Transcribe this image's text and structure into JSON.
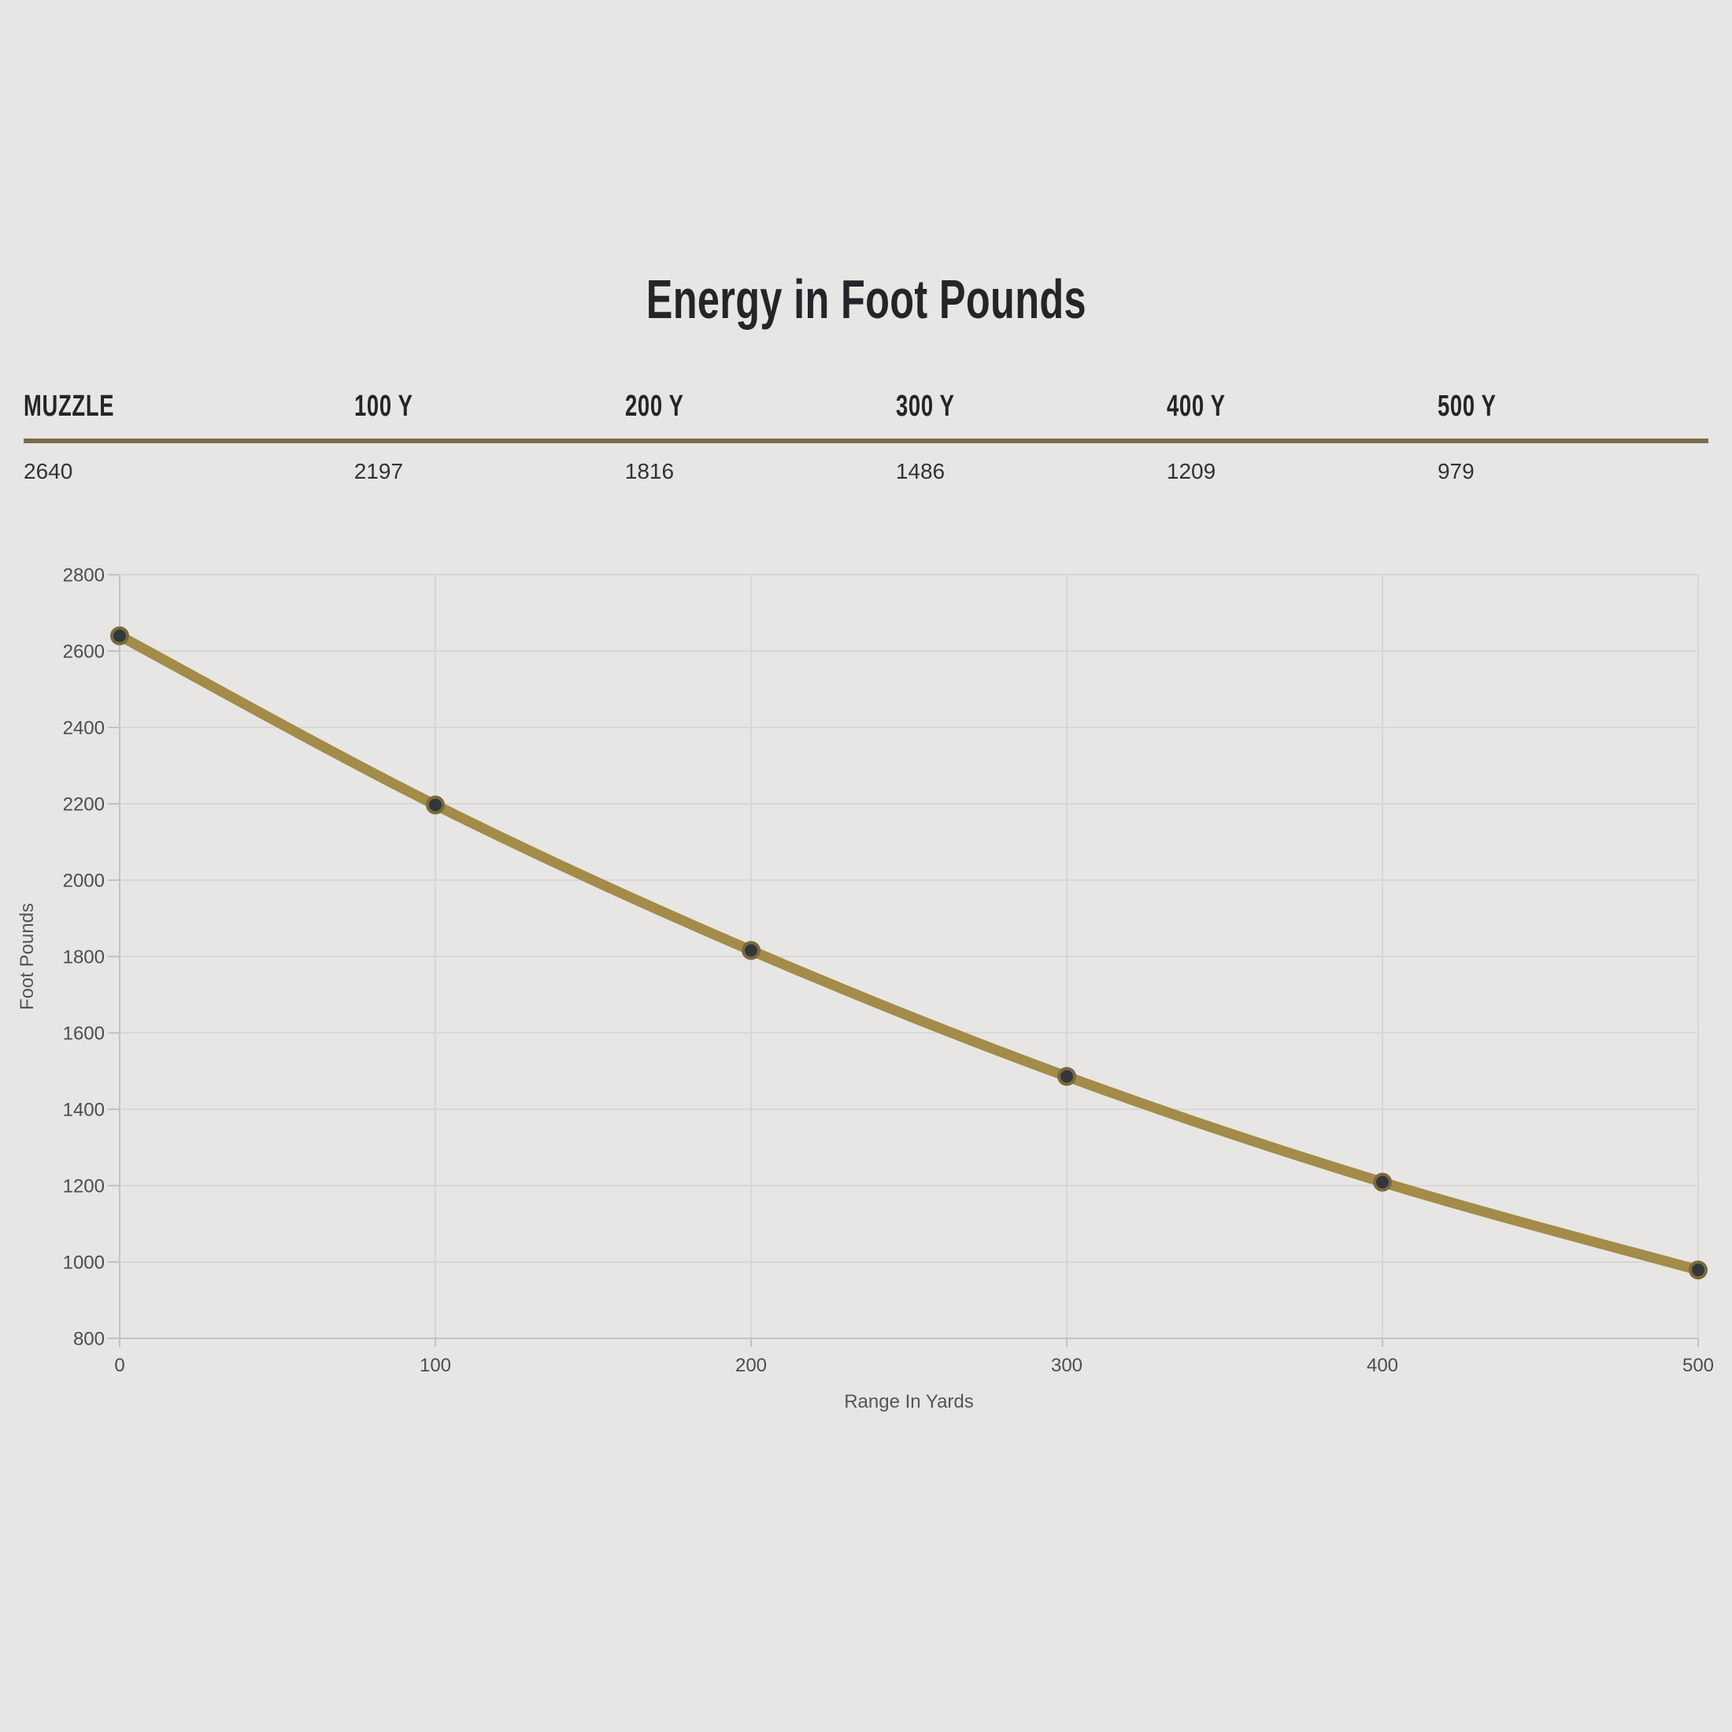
{
  "page": {
    "background": "#e7e6e4"
  },
  "title": "Energy in Foot Pounds",
  "table": {
    "headers": [
      "MUZZLE",
      "100 Y",
      "200 Y",
      "300 Y",
      "400 Y",
      "500 Y"
    ],
    "values": [
      "2640",
      "2197",
      "1816",
      "1486",
      "1209",
      "979"
    ],
    "rule_color": "#7a6b4e"
  },
  "chart_data": {
    "type": "line",
    "title": "Energy in Foot Pounds",
    "x": [
      0,
      100,
      200,
      300,
      400,
      500
    ],
    "series": [
      {
        "name": "Energy",
        "values": [
          2640,
          2197,
          1816,
          1486,
          1209,
          979
        ]
      }
    ],
    "xlabel": "Range In Yards",
    "ylabel": "Foot Pounds",
    "xlim": [
      0,
      500
    ],
    "ylim": [
      800,
      2800
    ],
    "xticks": [
      0,
      100,
      200,
      300,
      400,
      500
    ],
    "yticks": [
      800,
      1000,
      1200,
      1400,
      1600,
      1800,
      2000,
      2200,
      2400,
      2600,
      2800
    ],
    "grid": true,
    "legend": false,
    "colors": {
      "line": "#a38b49",
      "point_fill": "#33373c",
      "point_ring": "#7a6a3c",
      "gridline": "#d8d7d5",
      "axis": "#c4c3c1",
      "tick_label": "#4d4d4d",
      "axis_title": "#555555"
    }
  }
}
